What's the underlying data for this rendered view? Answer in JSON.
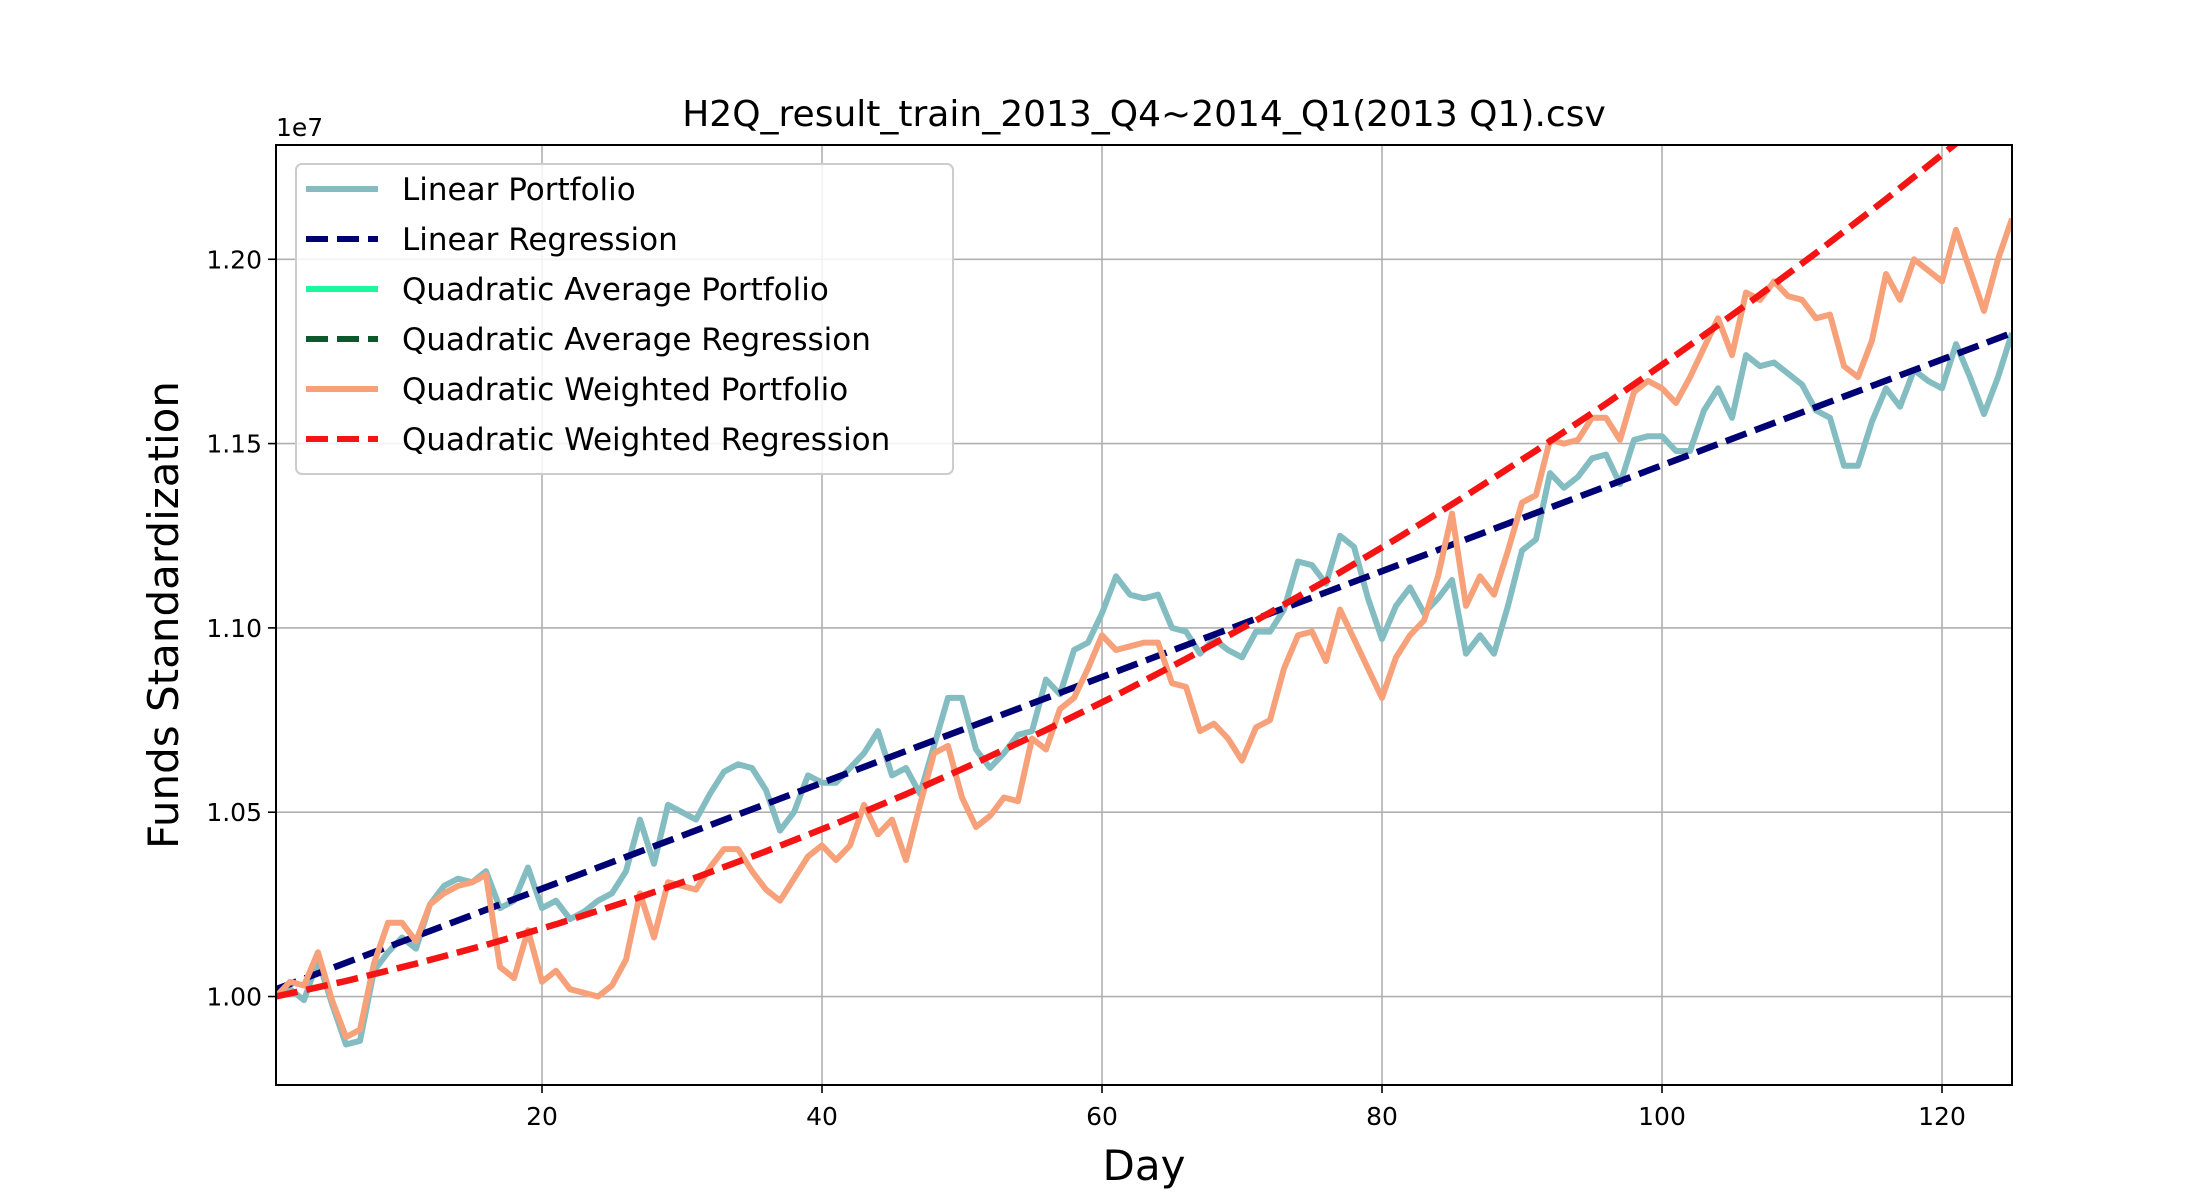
{
  "chart_data": {
    "type": "line",
    "title": "H2Q_result_train_2013_Q4~2014_Q1(2013 Q1).csv",
    "xlabel": "Day",
    "ylabel": "Funds Standardization",
    "y_offset_label": "1e7",
    "xlim": [
      1,
      125
    ],
    "ylim": [
      0.976,
      1.231
    ],
    "x_ticks": [
      20,
      40,
      60,
      80,
      100,
      120
    ],
    "y_ticks": [
      1.0,
      1.05,
      1.1,
      1.15,
      1.2
    ],
    "x_tick_labels": [
      "20",
      "40",
      "60",
      "80",
      "100",
      "120"
    ],
    "y_tick_labels": [
      "1.00",
      "1.05",
      "1.10",
      "1.15",
      "1.20"
    ],
    "grid": true,
    "legend_position": "upper-left",
    "series": [
      {
        "name": "Linear Portfolio",
        "style": "solid",
        "color": "#84bdc1",
        "x": [
          1,
          2,
          3,
          4,
          5,
          6,
          7,
          8,
          9,
          10,
          11,
          12,
          13,
          14,
          15,
          16,
          17,
          18,
          19,
          20,
          21,
          22,
          23,
          24,
          25,
          26,
          27,
          28,
          29,
          30,
          31,
          32,
          33,
          34,
          35,
          36,
          37,
          38,
          39,
          40,
          41,
          42,
          43,
          44,
          45,
          46,
          47,
          48,
          49,
          50,
          51,
          52,
          53,
          54,
          55,
          56,
          57,
          58,
          59,
          60,
          61,
          62,
          63,
          64,
          65,
          66,
          67,
          68,
          69,
          70,
          71,
          72,
          73,
          74,
          75,
          76,
          77,
          78,
          79,
          80,
          81,
          82,
          83,
          84,
          85,
          86,
          87,
          88,
          89,
          90,
          91,
          92,
          93,
          94,
          95,
          96,
          97,
          98,
          99,
          100,
          101,
          102,
          103,
          104,
          105,
          106,
          107,
          108,
          109,
          110,
          111,
          112,
          113,
          114,
          115,
          116,
          117,
          118,
          119,
          120,
          121,
          122,
          123,
          124,
          125
        ],
        "values": [
          1.0,
          1.002,
          0.999,
          1.01,
          0.998,
          0.987,
          0.988,
          1.007,
          1.012,
          1.016,
          1.013,
          1.025,
          1.03,
          1.032,
          1.031,
          1.034,
          1.024,
          1.026,
          1.035,
          1.024,
          1.026,
          1.021,
          1.023,
          1.026,
          1.028,
          1.034,
          1.048,
          1.036,
          1.052,
          1.05,
          1.048,
          1.055,
          1.061,
          1.063,
          1.062,
          1.056,
          1.045,
          1.05,
          1.06,
          1.058,
          1.058,
          1.062,
          1.066,
          1.072,
          1.06,
          1.062,
          1.055,
          1.068,
          1.081,
          1.081,
          1.067,
          1.062,
          1.066,
          1.071,
          1.072,
          1.086,
          1.082,
          1.094,
          1.096,
          1.104,
          1.114,
          1.109,
          1.108,
          1.109,
          1.1,
          1.099,
          1.093,
          1.097,
          1.094,
          1.092,
          1.099,
          1.099,
          1.105,
          1.118,
          1.117,
          1.112,
          1.125,
          1.122,
          1.108,
          1.097,
          1.106,
          1.111,
          1.104,
          1.108,
          1.113,
          1.093,
          1.098,
          1.093,
          1.106,
          1.121,
          1.124,
          1.142,
          1.138,
          1.141,
          1.146,
          1.147,
          1.139,
          1.151,
          1.152,
          1.152,
          1.148,
          1.148,
          1.159,
          1.165,
          1.157,
          1.174,
          1.171,
          1.172,
          1.169,
          1.166,
          1.159,
          1.157,
          1.144,
          1.144,
          1.156,
          1.165,
          1.16,
          1.17,
          1.167,
          1.165,
          1.177,
          1.168,
          1.158,
          1.168,
          1.18
        ]
      },
      {
        "name": "Linear Regression",
        "style": "dashed",
        "color": "#000075",
        "x": [
          1,
          125
        ],
        "values": [
          1.002,
          1.18
        ]
      },
      {
        "name": "Quadratic Average Portfolio",
        "style": "solid",
        "color": "#1cf79b",
        "x": [],
        "values": []
      },
      {
        "name": "Quadratic Average Regression",
        "style": "dashed",
        "color": "#0b5a2e",
        "x": [],
        "values": []
      },
      {
        "name": "Quadratic Weighted Portfolio",
        "style": "solid",
        "color": "#f7a17a",
        "x": [
          1,
          2,
          3,
          4,
          5,
          6,
          7,
          8,
          9,
          10,
          11,
          12,
          13,
          14,
          15,
          16,
          17,
          18,
          19,
          20,
          21,
          22,
          23,
          24,
          25,
          26,
          27,
          28,
          29,
          30,
          31,
          32,
          33,
          34,
          35,
          36,
          37,
          38,
          39,
          40,
          41,
          42,
          43,
          44,
          45,
          46,
          47,
          48,
          49,
          50,
          51,
          52,
          53,
          54,
          55,
          56,
          57,
          58,
          59,
          60,
          61,
          62,
          63,
          64,
          65,
          66,
          67,
          68,
          69,
          70,
          71,
          72,
          73,
          74,
          75,
          76,
          77,
          78,
          79,
          80,
          81,
          82,
          83,
          84,
          85,
          86,
          87,
          88,
          89,
          90,
          91,
          92,
          93,
          94,
          95,
          96,
          97,
          98,
          99,
          100,
          101,
          102,
          103,
          104,
          105,
          106,
          107,
          108,
          109,
          110,
          111,
          112,
          113,
          114,
          115,
          116,
          117,
          118,
          119,
          120,
          121,
          122,
          123,
          124,
          125
        ],
        "values": [
          1.0,
          1.004,
          1.003,
          1.012,
          0.999,
          0.989,
          0.991,
          1.009,
          1.02,
          1.02,
          1.015,
          1.025,
          1.028,
          1.03,
          1.031,
          1.033,
          1.008,
          1.005,
          1.018,
          1.004,
          1.007,
          1.002,
          1.001,
          1.0,
          1.003,
          1.01,
          1.028,
          1.016,
          1.031,
          1.03,
          1.029,
          1.035,
          1.04,
          1.04,
          1.034,
          1.029,
          1.026,
          1.032,
          1.038,
          1.041,
          1.037,
          1.041,
          1.052,
          1.044,
          1.048,
          1.037,
          1.052,
          1.066,
          1.068,
          1.054,
          1.046,
          1.049,
          1.054,
          1.053,
          1.07,
          1.067,
          1.078,
          1.081,
          1.089,
          1.098,
          1.094,
          1.095,
          1.096,
          1.096,
          1.085,
          1.084,
          1.072,
          1.074,
          1.07,
          1.064,
          1.073,
          1.075,
          1.089,
          1.098,
          1.099,
          1.091,
          1.105,
          1.097,
          1.089,
          1.081,
          1.092,
          1.098,
          1.102,
          1.114,
          1.131,
          1.106,
          1.114,
          1.109,
          1.121,
          1.134,
          1.136,
          1.151,
          1.15,
          1.151,
          1.157,
          1.157,
          1.151,
          1.164,
          1.167,
          1.165,
          1.161,
          1.168,
          1.176,
          1.184,
          1.174,
          1.191,
          1.189,
          1.194,
          1.19,
          1.189,
          1.184,
          1.185,
          1.171,
          1.168,
          1.178,
          1.196,
          1.189,
          1.2,
          1.197,
          1.194,
          1.208,
          1.197,
          1.186,
          1.2,
          1.211
        ]
      },
      {
        "name": "Quadratic Weighted Regression",
        "style": "dashed",
        "color": "#f51414",
        "x": [
          1,
          6,
          11,
          16,
          21,
          26,
          31,
          36,
          41,
          46,
          51,
          56,
          61,
          66,
          71,
          76,
          81,
          86,
          91,
          96,
          101,
          106,
          111,
          116,
          121,
          125
        ],
        "values": [
          1.0,
          1.0042,
          1.0089,
          1.014,
          1.0196,
          1.0257,
          1.0323,
          1.0394,
          1.0469,
          1.0549,
          1.0634,
          1.0723,
          1.0817,
          1.0916,
          1.102,
          1.1128,
          1.1241,
          1.1359,
          1.1481,
          1.1608,
          1.174,
          1.1876,
          1.2017,
          1.2163,
          1.2314,
          1.2438
        ]
      }
    ]
  }
}
